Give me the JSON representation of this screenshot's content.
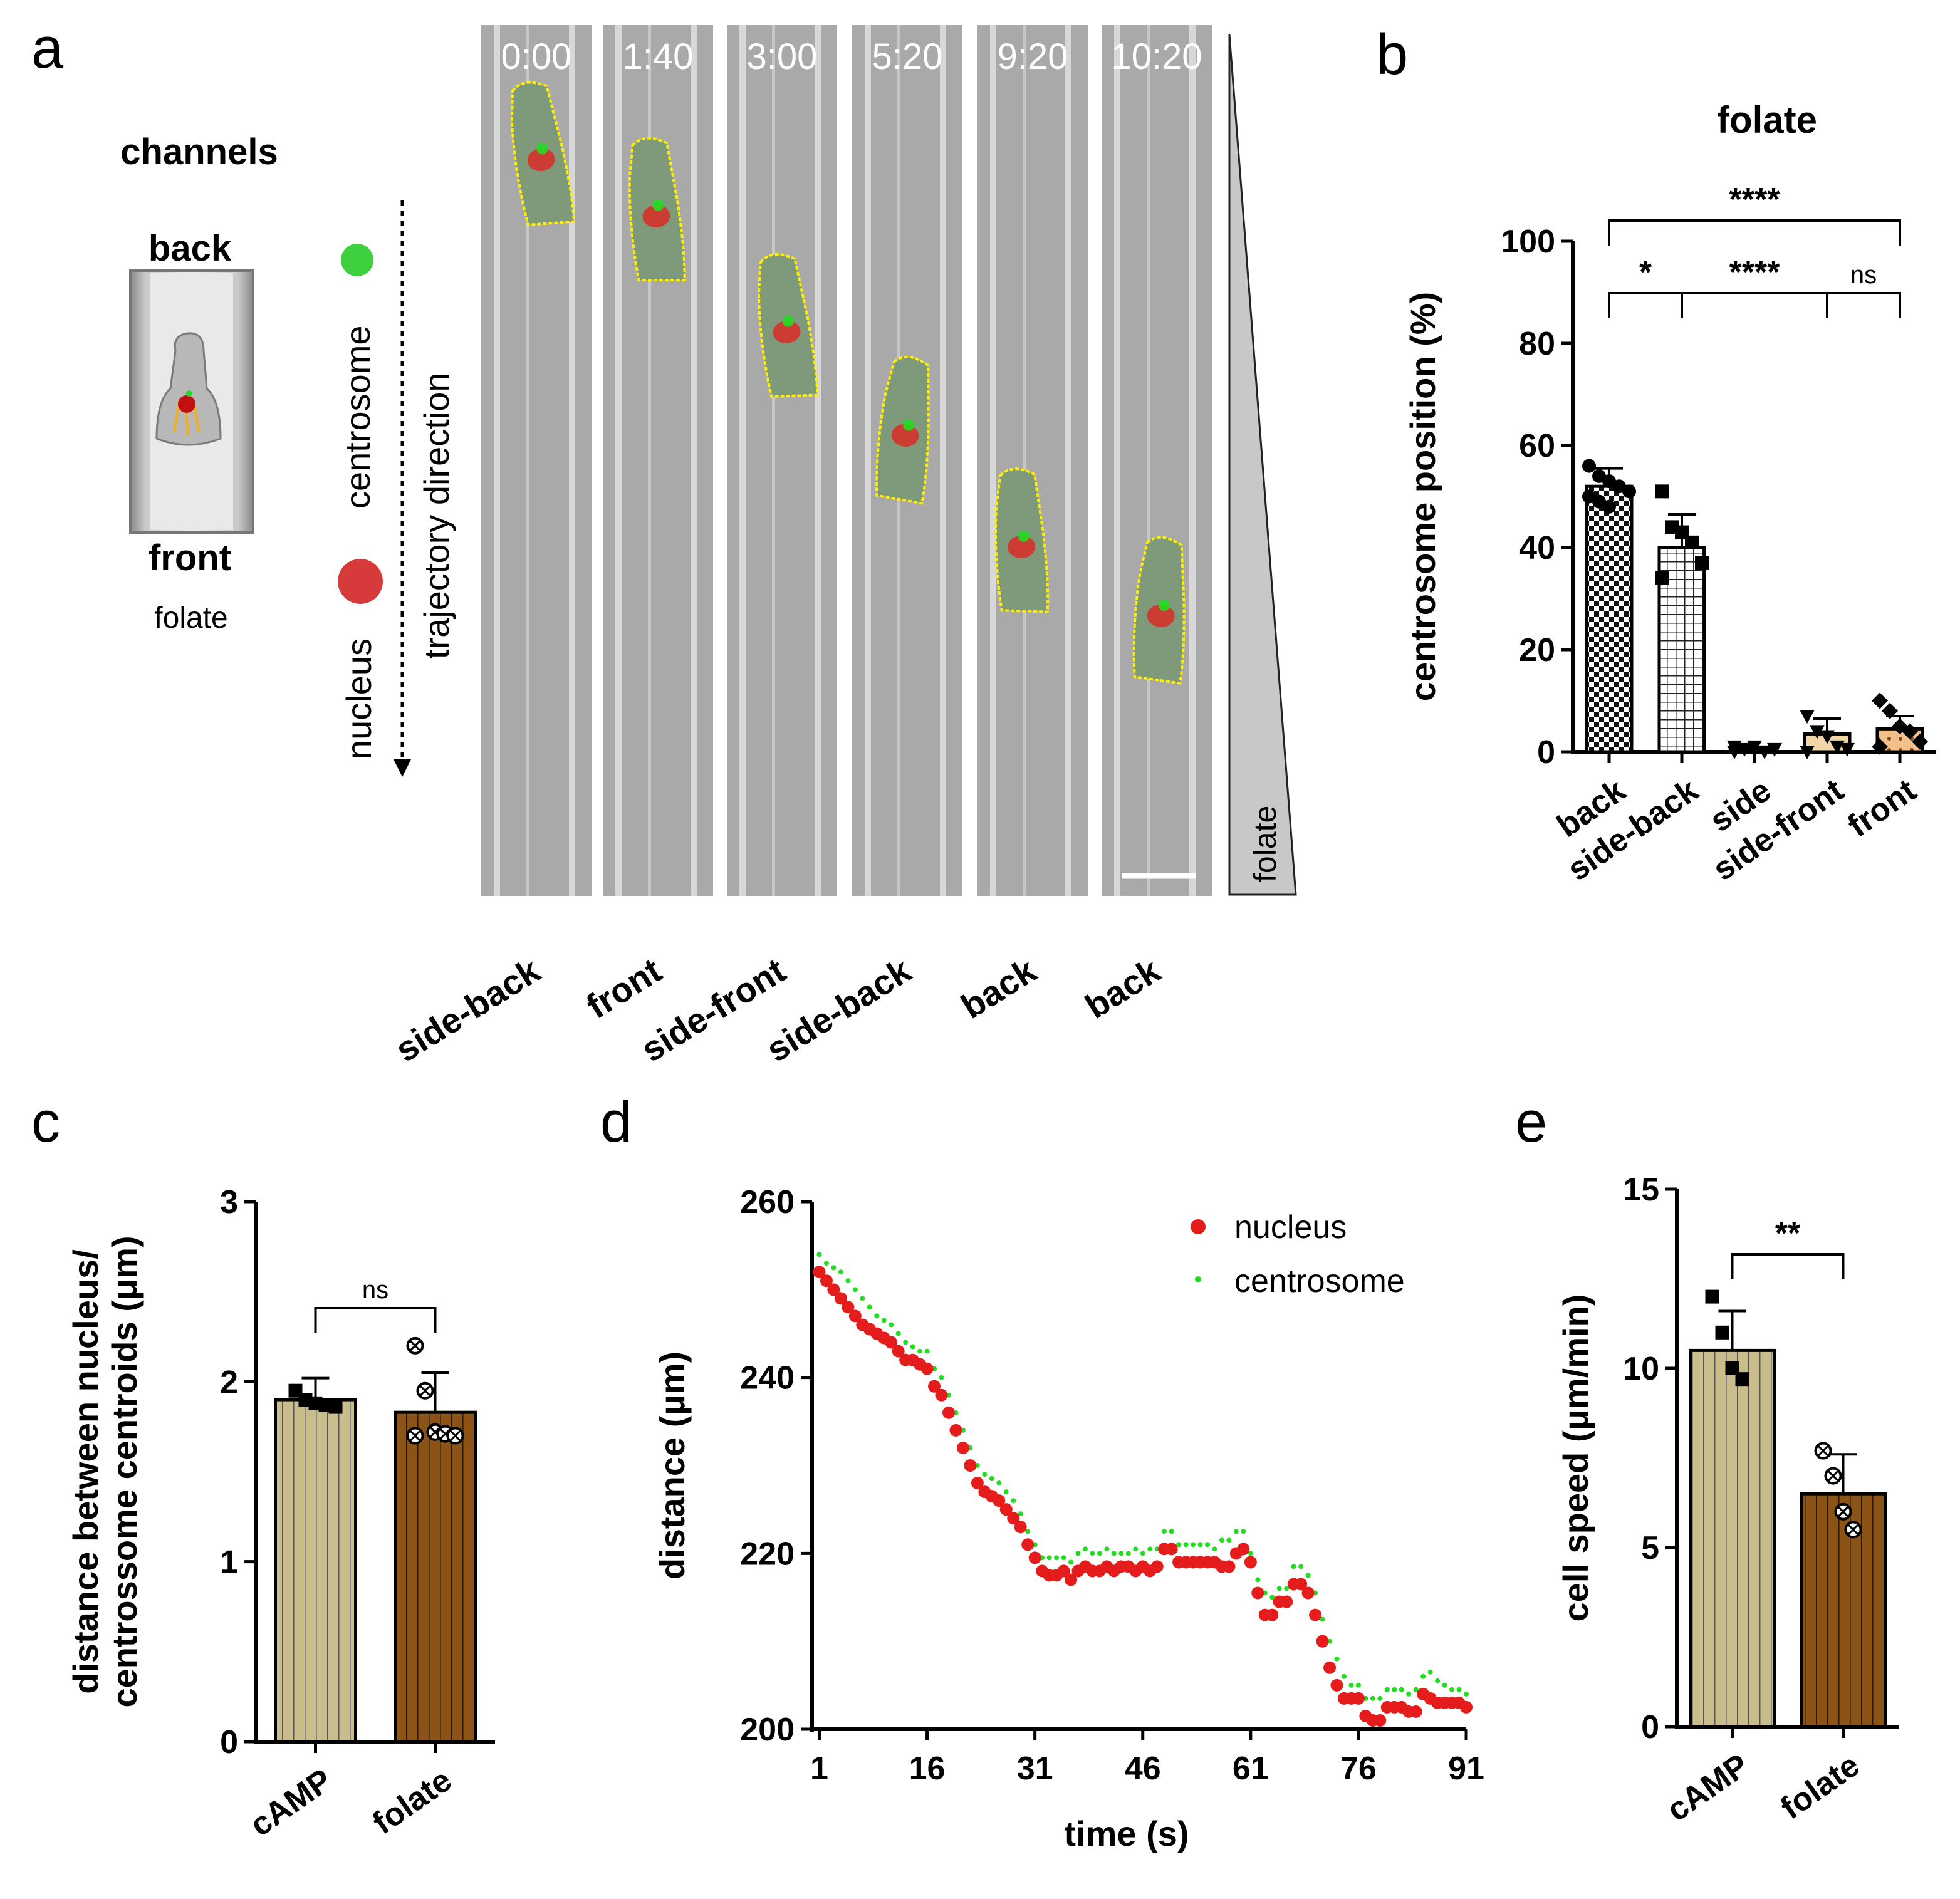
{
  "panels": {
    "a": {
      "letter": "a",
      "schematic": {
        "title": "channels",
        "back": "back",
        "front": "front",
        "folate": "folate"
      },
      "legend": {
        "centrosome": "centrosome",
        "nucleus": "nucleus",
        "trajectory": "trajectory direction"
      },
      "gradient_label": "folate",
      "frames": [
        {
          "time": "0:00",
          "position": "side-back"
        },
        {
          "time": "1:40",
          "position": "front"
        },
        {
          "time": "3:00",
          "position": "side-front"
        },
        {
          "time": "5:20",
          "position": "side-back"
        },
        {
          "time": "9:20",
          "position": "back"
        },
        {
          "time": "10:20",
          "position": "back"
        }
      ]
    },
    "b": {
      "letter": "b"
    },
    "c": {
      "letter": "c"
    },
    "d": {
      "letter": "d"
    },
    "e": {
      "letter": "e"
    }
  },
  "colors": {
    "nucleus": "#e51c1c",
    "centrosome": "#22dd22",
    "outline": "#ffee00",
    "camp_bar": "#c9bd8c",
    "folate_bar": "#8b5316",
    "front_bar": "#f2c08a"
  },
  "chart_data": [
    {
      "id": "b",
      "type": "bar",
      "title": "folate",
      "xlabel": "",
      "ylabel": "centrosome position (%)",
      "ylim": [
        0,
        100
      ],
      "yticks": [
        0,
        20,
        40,
        60,
        80,
        100
      ],
      "categories": [
        "back",
        "side-back",
        "side",
        "side-front",
        "front"
      ],
      "values": [
        52,
        40,
        0.5,
        3.5,
        4.5
      ],
      "errors": [
        3.5,
        6.5,
        0.5,
        3,
        2.5
      ],
      "points": [
        [
          56,
          54,
          53,
          52,
          51,
          50,
          49,
          48
        ],
        [
          51,
          44,
          43,
          41,
          37,
          34
        ],
        [
          0,
          0.5,
          1,
          0,
          0.5,
          1
        ],
        [
          7,
          4,
          3,
          1,
          0.5,
          0
        ],
        [
          10,
          8,
          5,
          4,
          2,
          1
        ]
      ],
      "significance": [
        {
          "from": 0,
          "to": 4,
          "label": "****"
        },
        {
          "from": 0,
          "to": 1,
          "label": "*"
        },
        {
          "from": 1,
          "to": 3,
          "label": "****"
        },
        {
          "from": 3,
          "to": 4,
          "label": "ns"
        }
      ]
    },
    {
      "id": "c",
      "type": "bar",
      "title": "",
      "xlabel": "",
      "ylabel_line1": "distance between nucleus/",
      "ylabel_line2": "centrossome centroids (μm)",
      "ylim": [
        0,
        3
      ],
      "yticks": [
        0,
        1,
        2,
        3
      ],
      "categories": [
        "cAMP",
        "folate"
      ],
      "values": [
        1.9,
        1.83
      ],
      "errors": [
        0.12,
        0.22
      ],
      "points": [
        [
          1.95,
          1.9,
          1.88,
          1.87,
          1.86
        ],
        [
          2.2,
          1.95,
          1.72,
          1.71,
          1.7,
          1.7
        ]
      ],
      "significance": [
        {
          "from": 0,
          "to": 1,
          "label": "ns"
        }
      ]
    },
    {
      "id": "d",
      "type": "scatter",
      "title": "",
      "xlabel": "time (s)",
      "ylabel": "distance (μm)",
      "xlim": [
        0,
        91
      ],
      "ylim": [
        200,
        260
      ],
      "xticks": [
        1,
        16,
        31,
        46,
        61,
        76,
        91
      ],
      "yticks": [
        200,
        220,
        240,
        260
      ],
      "series": [
        {
          "name": "nucleus",
          "x": [
            1,
            2,
            3,
            4,
            5,
            6,
            7,
            8,
            9,
            10,
            11,
            12,
            13,
            14,
            15,
            16,
            17,
            18,
            19,
            20,
            21,
            22,
            23,
            24,
            25,
            26,
            27,
            28,
            29,
            30,
            31,
            32,
            33,
            34,
            35,
            36,
            37,
            38,
            39,
            40,
            41,
            42,
            43,
            44,
            45,
            46,
            47,
            48,
            49,
            50,
            51,
            52,
            53,
            54,
            55,
            56,
            57,
            58,
            59,
            60,
            61,
            62,
            63,
            64,
            65,
            66,
            67,
            68,
            69,
            70,
            71,
            72,
            73,
            74,
            75,
            76,
            77,
            78,
            79,
            80,
            81,
            82,
            83,
            84,
            85,
            86,
            87,
            88,
            89,
            90,
            91
          ],
          "y": [
            252,
            251,
            250,
            249,
            248,
            247,
            246,
            245.5,
            245,
            244.5,
            244,
            243,
            242,
            242,
            241.5,
            241,
            239,
            238,
            236,
            234,
            232,
            230,
            228,
            227,
            226.5,
            226,
            225,
            224,
            223,
            221,
            219.5,
            218,
            217.5,
            217.5,
            218,
            217,
            218,
            218.5,
            218,
            218,
            218.5,
            218,
            218.5,
            218.5,
            218,
            218.5,
            218,
            218.5,
            220.5,
            220.5,
            219,
            219,
            219,
            219,
            219,
            219,
            218.5,
            218.5,
            220,
            220.5,
            219,
            215.5,
            213,
            213,
            214.5,
            214.5,
            216.5,
            216.5,
            215.5,
            213,
            210,
            207,
            205,
            203.5,
            203.5,
            203.5,
            201.5,
            201,
            201,
            202.5,
            202.5,
            202.5,
            202,
            202,
            204,
            203.5,
            203,
            203,
            203,
            203,
            202.5
          ]
        },
        {
          "name": "centrosome",
          "x": [
            1,
            2,
            3,
            4,
            5,
            6,
            7,
            8,
            9,
            10,
            11,
            12,
            13,
            14,
            15,
            16,
            17,
            18,
            19,
            20,
            21,
            22,
            23,
            24,
            25,
            26,
            27,
            28,
            29,
            30,
            31,
            32,
            33,
            34,
            35,
            36,
            37,
            38,
            39,
            40,
            41,
            42,
            43,
            44,
            45,
            46,
            47,
            48,
            49,
            50,
            51,
            52,
            53,
            54,
            55,
            56,
            57,
            58,
            59,
            60,
            61,
            62,
            63,
            64,
            65,
            66,
            67,
            68,
            69,
            70,
            71,
            72,
            73,
            74,
            75,
            76,
            77,
            78,
            79,
            80,
            81,
            82,
            83,
            84,
            85,
            86,
            87,
            88,
            89,
            90,
            91
          ],
          "y": [
            254,
            253,
            252.5,
            252,
            251,
            250,
            249,
            248,
            247,
            246.5,
            246,
            245,
            244,
            243.5,
            243,
            243,
            241,
            240,
            238,
            236,
            234,
            232,
            230,
            229,
            228.5,
            228,
            227,
            226,
            224.5,
            222.5,
            221,
            219.5,
            219.5,
            219.5,
            219.5,
            219,
            220,
            220.5,
            220,
            220,
            220.5,
            220,
            220,
            220,
            220.5,
            220,
            220.5,
            220.5,
            222.5,
            222.5,
            221,
            221,
            221,
            221,
            221,
            220.5,
            221.5,
            221.5,
            222.5,
            222.5,
            220,
            217,
            215.5,
            215,
            216,
            216,
            218.5,
            218.5,
            217.5,
            215.5,
            212.5,
            210,
            208,
            206,
            205,
            205,
            203.5,
            203.5,
            203.5,
            204.5,
            204.5,
            204.5,
            204,
            204.5,
            206,
            206.5,
            205.5,
            205,
            204.5,
            204.5,
            204
          ]
        }
      ]
    },
    {
      "id": "e",
      "type": "bar",
      "title": "",
      "xlabel": "",
      "ylabel": "cell speed (μm/min)",
      "ylim": [
        0,
        15
      ],
      "yticks": [
        0,
        5,
        10,
        15
      ],
      "categories": [
        "cAMP",
        "folate"
      ],
      "values": [
        10.5,
        6.5
      ],
      "errors": [
        1.1,
        1.1
      ],
      "points": [
        [
          12,
          11,
          10,
          9.7
        ],
        [
          7.7,
          7,
          6,
          5.5
        ]
      ],
      "significance": [
        {
          "from": 0,
          "to": 1,
          "label": "**"
        }
      ]
    }
  ]
}
